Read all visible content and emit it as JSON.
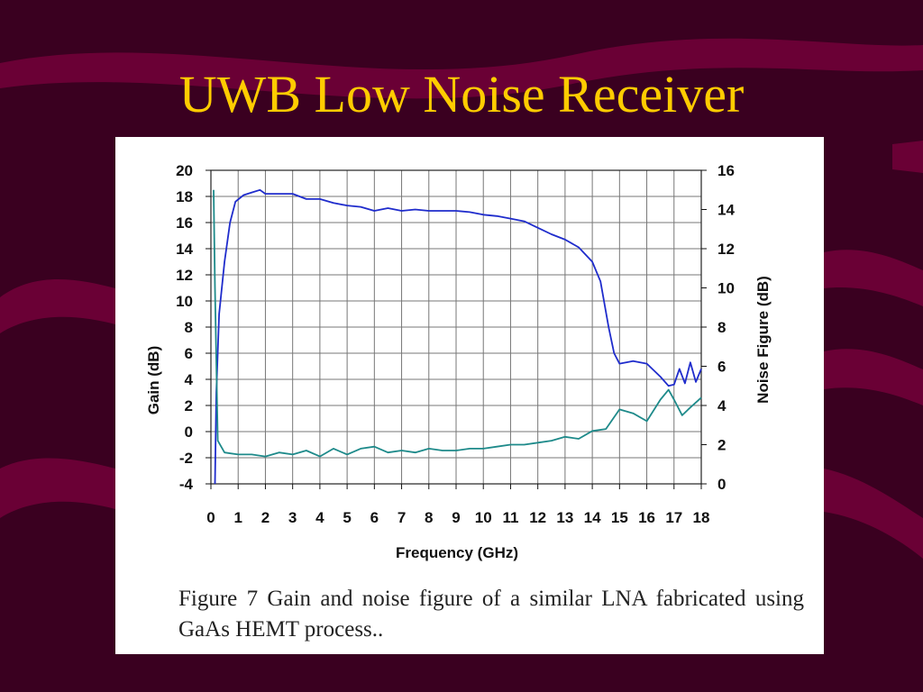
{
  "slide": {
    "title": "UWB Low Noise Receiver",
    "caption": "Figure 7 Gain and noise figure of a similar LNA fabricated using GaAs HEMT process.."
  },
  "colors": {
    "background": "#3a0020",
    "wave": "#6a0035",
    "title": "#ffcc00",
    "gain_line": "#1f2ccc",
    "noise_line": "#1e8a8a"
  },
  "chart_data": {
    "type": "line",
    "xlabel": "Frequency (GHz)",
    "ylabel": "Gain (dB)",
    "y2label": "Noise Figure (dB)",
    "xlim": [
      0,
      18
    ],
    "ylim": [
      -4,
      20
    ],
    "y2lim": [
      0,
      16
    ],
    "xticks": [
      0,
      1,
      2,
      3,
      4,
      5,
      6,
      7,
      8,
      9,
      10,
      11,
      12,
      13,
      14,
      15,
      16,
      17,
      18
    ],
    "yticks": [
      -4,
      -2,
      0,
      2,
      4,
      6,
      8,
      10,
      12,
      14,
      16,
      18,
      20
    ],
    "y2ticks": [
      0,
      2,
      4,
      6,
      8,
      10,
      12,
      14,
      16
    ],
    "grid": true,
    "series": [
      {
        "axis": "left",
        "color": "#1f2ccc",
        "points": [
          [
            0.15,
            -4
          ],
          [
            0.2,
            3
          ],
          [
            0.3,
            9
          ],
          [
            0.5,
            13
          ],
          [
            0.7,
            16
          ],
          [
            0.9,
            17.6
          ],
          [
            1.2,
            18.1
          ],
          [
            1.5,
            18.3
          ],
          [
            1.8,
            18.5
          ],
          [
            2,
            18.2
          ],
          [
            2.5,
            18.2
          ],
          [
            3,
            18.2
          ],
          [
            3.5,
            17.8
          ],
          [
            4,
            17.8
          ],
          [
            4.5,
            17.5
          ],
          [
            5,
            17.3
          ],
          [
            5.5,
            17.2
          ],
          [
            6,
            16.9
          ],
          [
            6.5,
            17.1
          ],
          [
            7,
            16.9
          ],
          [
            7.5,
            17
          ],
          [
            8,
            16.9
          ],
          [
            8.5,
            16.9
          ],
          [
            9,
            16.9
          ],
          [
            9.5,
            16.8
          ],
          [
            10,
            16.6
          ],
          [
            10.5,
            16.5
          ],
          [
            11,
            16.3
          ],
          [
            11.5,
            16.1
          ],
          [
            12,
            15.6
          ],
          [
            12.5,
            15.1
          ],
          [
            13,
            14.7
          ],
          [
            13.5,
            14.1
          ],
          [
            14,
            13
          ],
          [
            14.3,
            11.5
          ],
          [
            14.6,
            8
          ],
          [
            14.8,
            6
          ],
          [
            15,
            5.2
          ],
          [
            15.5,
            5.4
          ],
          [
            16,
            5.2
          ],
          [
            16.5,
            4.2
          ],
          [
            16.8,
            3.5
          ],
          [
            17,
            3.6
          ],
          [
            17.2,
            4.8
          ],
          [
            17.4,
            3.7
          ],
          [
            17.6,
            5.3
          ],
          [
            17.8,
            3.8
          ],
          [
            18,
            4.8
          ]
        ]
      },
      {
        "axis": "right",
        "color": "#1e8a8a",
        "points": [
          [
            0.1,
            15
          ],
          [
            0.15,
            10
          ],
          [
            0.25,
            2.2
          ],
          [
            0.5,
            1.6
          ],
          [
            1,
            1.5
          ],
          [
            1.5,
            1.5
          ],
          [
            2,
            1.4
          ],
          [
            2.5,
            1.6
          ],
          [
            3,
            1.5
          ],
          [
            3.5,
            1.7
          ],
          [
            4,
            1.4
          ],
          [
            4.5,
            1.8
          ],
          [
            5,
            1.5
          ],
          [
            5.5,
            1.8
          ],
          [
            6,
            1.9
          ],
          [
            6.5,
            1.6
          ],
          [
            7,
            1.7
          ],
          [
            7.5,
            1.6
          ],
          [
            8,
            1.8
          ],
          [
            8.5,
            1.7
          ],
          [
            9,
            1.7
          ],
          [
            9.5,
            1.8
          ],
          [
            10,
            1.8
          ],
          [
            10.5,
            1.9
          ],
          [
            11,
            2
          ],
          [
            11.5,
            2
          ],
          [
            12,
            2.1
          ],
          [
            12.5,
            2.2
          ],
          [
            13,
            2.4
          ],
          [
            13.5,
            2.3
          ],
          [
            14,
            2.7
          ],
          [
            14.5,
            2.8
          ],
          [
            15,
            3.8
          ],
          [
            15.5,
            3.6
          ],
          [
            16,
            3.2
          ],
          [
            16.5,
            4.3
          ],
          [
            16.8,
            4.8
          ],
          [
            17,
            4.3
          ],
          [
            17.3,
            3.5
          ],
          [
            17.6,
            3.9
          ],
          [
            18,
            4.4
          ]
        ]
      }
    ]
  }
}
